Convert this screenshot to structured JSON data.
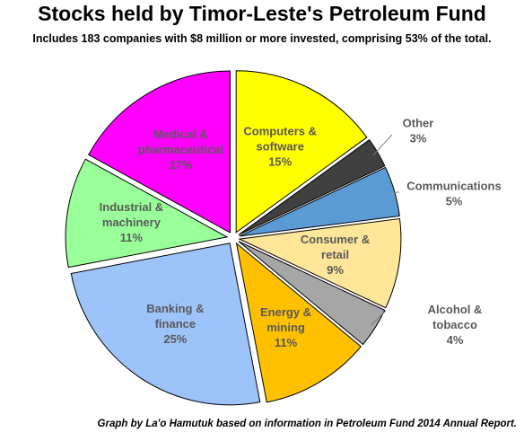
{
  "title": "Stocks held by Timor-Leste's Petroleum Fund",
  "subtitle": "Includes 183 companies with $8 million or more invested, comprising 53% of the total.",
  "footer": "Graph by La'o Hamutuk based on information in Petroleum Fund 2014  Annual Report.",
  "chart_data": {
    "type": "pie",
    "title": "Stocks held by Timor-Leste's Petroleum Fund",
    "subtitle": "Includes 183 companies with $8 million or more invested, comprising 53% of the total.",
    "unit": "%",
    "exploded": true,
    "slices": [
      {
        "lines": [
          "Computers &",
          "software"
        ],
        "value": 15,
        "label": "15%",
        "color": "#ffff00",
        "label_inside": true,
        "label_color": "#595959"
      },
      {
        "lines": [
          "Other"
        ],
        "value": 3,
        "label": "3%",
        "color": "#404040",
        "label_inside": false,
        "label_color": "#595959"
      },
      {
        "lines": [
          "Communications"
        ],
        "value": 5,
        "label": "5%",
        "color": "#5b9bd5",
        "label_inside": false,
        "label_color": "#595959"
      },
      {
        "lines": [
          "Consumer &",
          "retail"
        ],
        "value": 9,
        "label": "9%",
        "color": "#ffe699",
        "label_inside": true,
        "label_color": "#595959"
      },
      {
        "lines": [
          "Alcohol &",
          "tobacco"
        ],
        "value": 4,
        "label": "4%",
        "color": "#a6a6a6",
        "label_inside": false,
        "label_color": "#595959"
      },
      {
        "lines": [
          "Energy &",
          "mining"
        ],
        "value": 11,
        "label": "11%",
        "color": "#ffc000",
        "label_inside": true,
        "label_color": "#595959"
      },
      {
        "lines": [
          "Banking &",
          "finance"
        ],
        "value": 25,
        "label": "25%",
        "color": "#9dc3fb",
        "label_inside": true,
        "label_color": "#595959"
      },
      {
        "lines": [
          "Industrial &",
          "machinery"
        ],
        "value": 11,
        "label": "11%",
        "color": "#99ff99",
        "label_inside": true,
        "label_color": "#595959"
      },
      {
        "lines": [
          "Medical &",
          "pharmaceutical"
        ],
        "value": 17,
        "label": "17%",
        "color": "#ff00ff",
        "label_inside": true,
        "label_color": "#595959"
      }
    ]
  }
}
